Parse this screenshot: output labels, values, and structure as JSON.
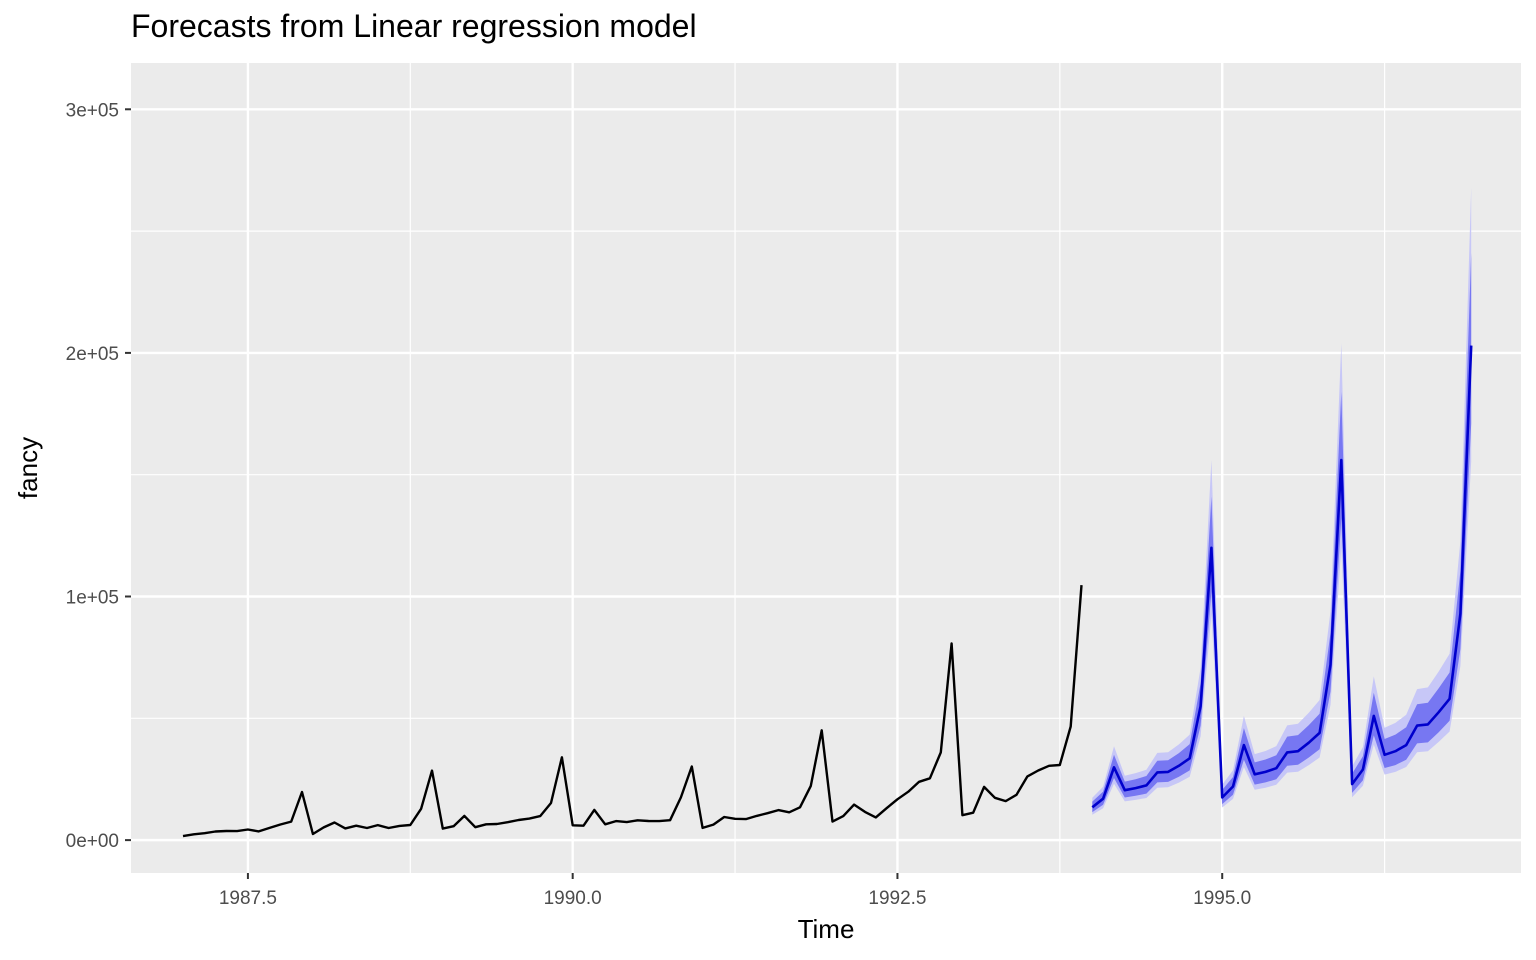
{
  "chart_data": {
    "type": "line",
    "title": "Forecasts from Linear regression model",
    "xlabel": "Time",
    "ylabel": "fancy",
    "xlim": [
      1986.6,
      1997.3
    ],
    "ylim": [
      -13500,
      319000
    ],
    "x_ticks": [
      {
        "value": 1987.5,
        "label": "1987.5"
      },
      {
        "value": 1990.0,
        "label": "1990.0"
      },
      {
        "value": 1992.5,
        "label": "1992.5"
      },
      {
        "value": 1995.0,
        "label": "1995.0"
      }
    ],
    "y_ticks": [
      {
        "value": 0,
        "label": "0e+00"
      },
      {
        "value": 100000,
        "label": "1e+05"
      },
      {
        "value": 200000,
        "label": "2e+05"
      },
      {
        "value": 300000,
        "label": "3e+05"
      }
    ],
    "grid": true,
    "colors": {
      "panel": "#ebebeb",
      "grid": "#ffffff",
      "history": "#000000",
      "forecast": "#0000cc",
      "band80": "#7777f2",
      "band95": "#c7c7f7"
    },
    "history": {
      "start": 1987.0,
      "frequency": 12,
      "values": [
        1664,
        2398,
        2841,
        3547,
        3753,
        3715,
        4350,
        3566,
        5022,
        6423,
        7601,
        19756,
        2499,
        5198,
        7225,
        4807,
        5901,
        4952,
        6180,
        4964,
        5834,
        6200,
        12846,
        28541,
        4717,
        5703,
        9957,
        5304,
        6493,
        6631,
        7362,
        8271,
        8830,
        9875,
        15221,
        33988,
        6095,
        5919,
        12422,
        6484,
        7800,
        7387,
        8133,
        7835,
        7795,
        8180,
        17542,
        30205,
        5000,
        6350,
        9499,
        8735,
        8620,
        9936,
        11047,
        12300,
        11437,
        13456,
        22270,
        45060,
        7615,
        9849,
        14559,
        11587,
        9333,
        13082,
        16733,
        19889,
        23933,
        25391,
        36024,
        80721,
        10243,
        11267,
        21827,
        17357,
        15998,
        18601,
        26155,
        28587,
        30505,
        30821,
        46634,
        104661
      ]
    },
    "forecast": {
      "start": 1994.0,
      "frequency": 12,
      "mean": [
        13487,
        17003,
        29878,
        20500,
        21350,
        22450,
        27800,
        28000,
        30500,
        33600,
        55000,
        120000,
        17500,
        22000,
        39000,
        27000,
        28000,
        29500,
        36000,
        36500,
        40000,
        44000,
        72000,
        156000,
        23000,
        29000,
        51000,
        35000,
        36500,
        39000,
        47000,
        47500,
        52500,
        58000,
        93000,
        203000
      ],
      "lo80": [
        11500,
        14500,
        25500,
        17500,
        18200,
        19100,
        23700,
        23900,
        26000,
        28600,
        47000,
        102000,
        14800,
        18600,
        33000,
        22800,
        23700,
        25000,
        30500,
        30900,
        33900,
        37300,
        61000,
        132000,
        19400,
        24500,
        43000,
        29600,
        30800,
        33000,
        39700,
        40100,
        44300,
        49000,
        78500,
        171000
      ],
      "hi80": [
        15800,
        19900,
        35000,
        24000,
        25000,
        26300,
        32600,
        32800,
        35700,
        39400,
        64400,
        141000,
        20600,
        25900,
        46000,
        31900,
        33100,
        34800,
        42500,
        43100,
        47200,
        51900,
        85000,
        184000,
        27300,
        34400,
        60500,
        41500,
        43300,
        46300,
        55800,
        56400,
        62300,
        68800,
        110500,
        241000
      ],
      "lo95": [
        10400,
        13100,
        23100,
        15900,
        16500,
        17300,
        21500,
        21700,
        23600,
        26000,
        42600,
        92500,
        13400,
        16900,
        30000,
        20700,
        21500,
        22700,
        27700,
        28100,
        30800,
        33900,
        55500,
        120000,
        17600,
        22300,
        39200,
        26900,
        28000,
        30000,
        36100,
        36500,
        40300,
        44600,
        71500,
        155500
      ],
      "hi95": [
        17400,
        21900,
        38500,
        26400,
        27500,
        28900,
        35800,
        36100,
        39300,
        43300,
        70800,
        156000,
        22800,
        28700,
        51000,
        35300,
        36600,
        38600,
        47100,
        47800,
        52300,
        57500,
        94000,
        204000,
        30300,
        38200,
        67200,
        46100,
        48100,
        51500,
        62000,
        62700,
        69200,
        76500,
        122800,
        268000
      ]
    }
  }
}
